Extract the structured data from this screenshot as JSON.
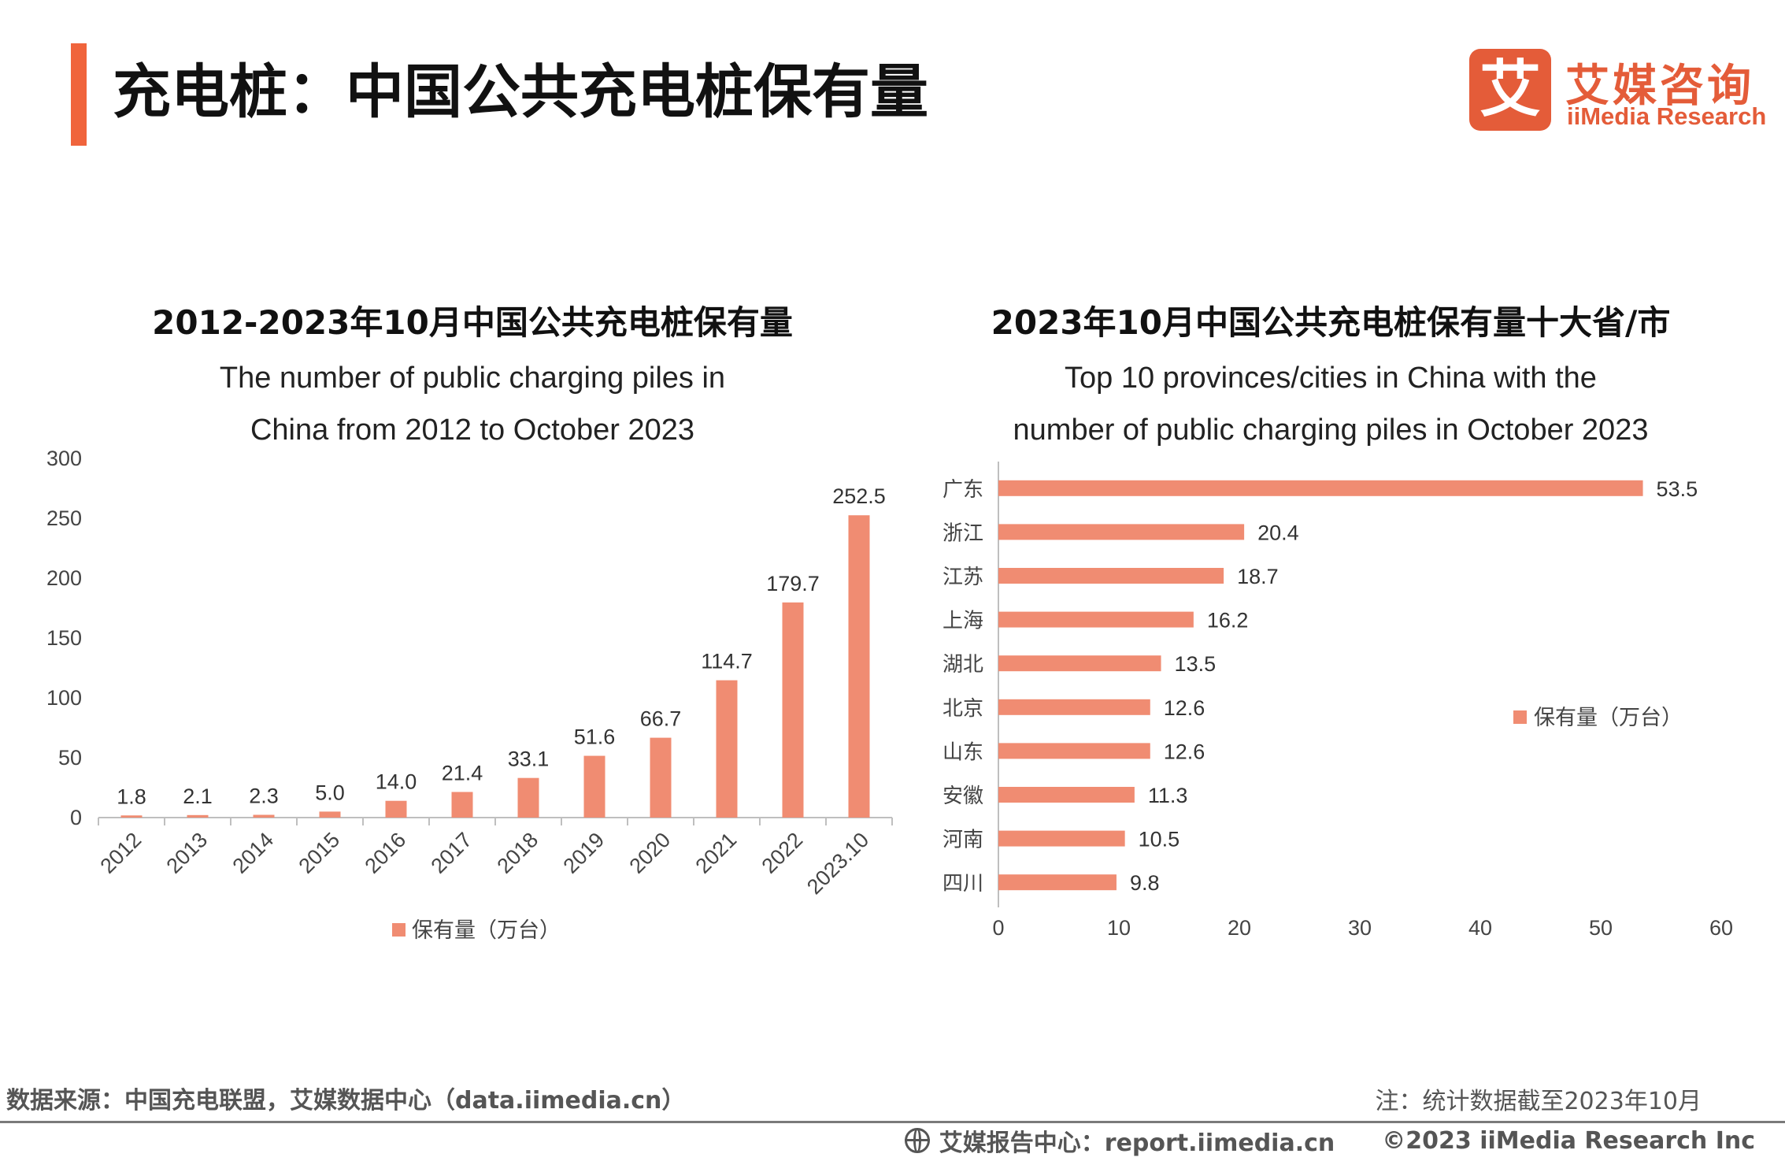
{
  "header": {
    "title": "充电桩：中国公共充电桩保有量",
    "logo_mark": "艾",
    "logo_cn": "艾媒咨询",
    "logo_en": "iiMedia Research"
  },
  "colors": {
    "accent": "#f0643c",
    "bar": "#f08c72",
    "logo": "#e45c39"
  },
  "chart_data": [
    {
      "type": "bar",
      "title": "2012-2023年10月中国公共充电桩保有量",
      "subtitle": [
        "The number of public charging piles in",
        "China from 2012 to October 2023"
      ],
      "categories": [
        "2012",
        "2013",
        "2014",
        "2015",
        "2016",
        "2017",
        "2018",
        "2019",
        "2020",
        "2021",
        "2022",
        "2023.10"
      ],
      "series": [
        {
          "name": "保有量（万台）",
          "values": [
            1.8,
            2.1,
            2.3,
            5.0,
            14.0,
            21.4,
            33.1,
            51.6,
            66.7,
            114.7,
            179.7,
            252.5
          ]
        }
      ],
      "data_labels": [
        "1.8",
        "2.1",
        "2.3",
        "5.0",
        "14.0",
        "21.4",
        "33.1",
        "51.6",
        "66.7",
        "114.7",
        "179.7",
        "252.5"
      ],
      "yticks": [
        "0",
        "50",
        "100",
        "150",
        "200",
        "250",
        "300"
      ],
      "ylim": [
        0,
        300
      ],
      "legend": "bottom"
    },
    {
      "type": "bar",
      "orientation": "horizontal",
      "title": "2023年10月中国公共充电桩保有量十大省/市",
      "subtitle": [
        "Top 10 provinces/cities in China with the",
        "number of public charging piles in October 2023"
      ],
      "categories": [
        "广东",
        "浙江",
        "江苏",
        "上海",
        "湖北",
        "北京",
        "山东",
        "安徽",
        "河南",
        "四川"
      ],
      "series": [
        {
          "name": "保有量（万台）",
          "values": [
            53.5,
            20.4,
            18.7,
            16.2,
            13.5,
            12.6,
            12.6,
            11.3,
            10.5,
            9.8
          ]
        }
      ],
      "data_labels": [
        "53.5",
        "20.4",
        "18.7",
        "16.2",
        "13.5",
        "12.6",
        "12.6",
        "11.3",
        "10.5",
        "9.8"
      ],
      "xticks": [
        "0",
        "10",
        "20",
        "30",
        "40",
        "50",
        "60"
      ],
      "xlim": [
        0,
        60
      ],
      "legend": "right"
    }
  ],
  "footer": {
    "source": "数据来源：中国充电联盟，艾媒数据中心（data.iimedia.cn）",
    "note": "注：统计数据截至2023年10月",
    "report_center": "艾媒报告中心：report.iimedia.cn",
    "copyright": "©2023  iiMedia Research  Inc"
  }
}
